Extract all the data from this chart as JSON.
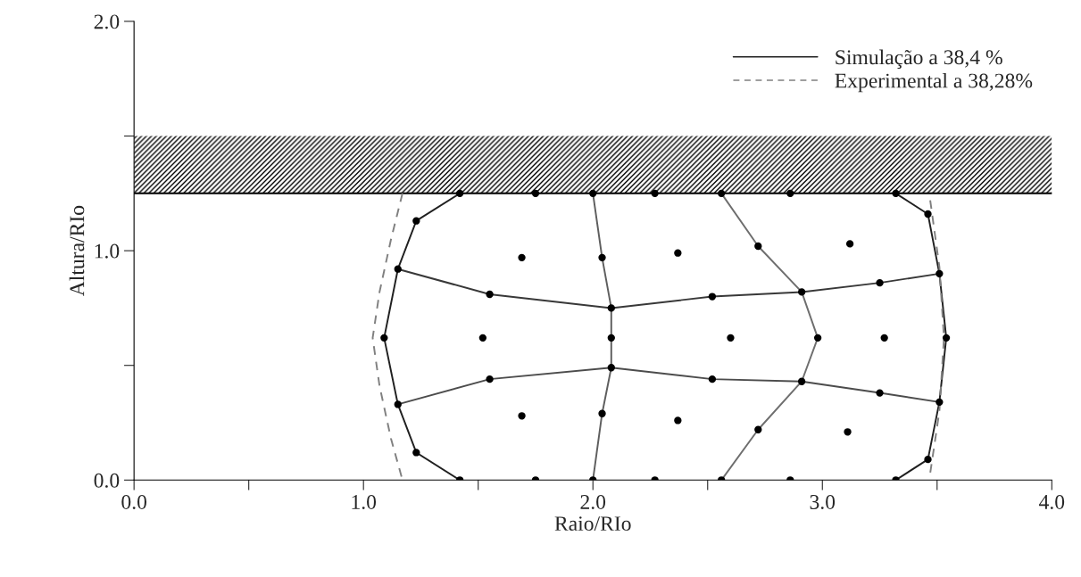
{
  "chart_data": {
    "type": "line",
    "xlabel": "Raio/RIo",
    "ylabel": "Altura/RIo",
    "xlim": [
      0,
      4.0
    ],
    "ylim": [
      0,
      2.0
    ],
    "xticks": [
      {
        "value": 0,
        "label": "0.0"
      },
      {
        "value": 0.5,
        "label": null
      },
      {
        "value": 1,
        "label": "1.0"
      },
      {
        "value": 1.5,
        "label": null
      },
      {
        "value": 2,
        "label": "2.0"
      },
      {
        "value": 2.5,
        "label": null
      },
      {
        "value": 3,
        "label": "3.0"
      },
      {
        "value": 3.5,
        "label": null
      },
      {
        "value": 4,
        "label": "4.0"
      }
    ],
    "yticks": [
      {
        "value": 0,
        "label": "0.0"
      },
      {
        "value": 0.5,
        "label": null
      },
      {
        "value": 1,
        "label": "1.0"
      },
      {
        "value": 1.5,
        "label": null
      },
      {
        "value": 2,
        "label": "2.0"
      }
    ],
    "grid": false,
    "legend": "top right",
    "bands": [
      {
        "axis": "y",
        "from": 1.25,
        "to": 1.5,
        "color": "#000000"
      }
    ],
    "ref_lines": [
      {
        "axis": "y",
        "value": 1.25,
        "color": "#000000",
        "line_style": "solid"
      }
    ],
    "series": [
      {
        "name": "Simulação a 38,4 %",
        "color": "#202020",
        "line_style": "solid",
        "marker": "none",
        "x": [
          1.42,
          1.23,
          1.15,
          1.09,
          1.15,
          1.23,
          1.42
        ],
        "values": [
          0,
          0.12,
          0.33,
          0.62,
          0.92,
          1.13,
          1.25
        ]
      },
      {
        "color": "#202020",
        "line_style": "solid",
        "marker": "none",
        "x": [
          3.32,
          3.46,
          3.51,
          3.54,
          3.51,
          3.46,
          3.32
        ],
        "values": [
          1.25,
          1.16,
          0.9,
          0.62,
          0.34,
          0.09,
          0
        ]
      },
      {
        "name": "Experimental a 38,28%",
        "color": "#808080",
        "line_style": "dashed",
        "marker": "none",
        "x": [
          1.17,
          1.12,
          1.07,
          1.04,
          1.07,
          1.12,
          1.17
        ],
        "values": [
          1.25,
          1.05,
          0.82,
          0.62,
          0.41,
          0.18,
          0
        ]
      },
      {
        "color": "#808080",
        "line_style": "dashed",
        "marker": "none",
        "x": [
          3.47,
          3.51,
          3.53,
          3.51,
          3.47
        ],
        "values": [
          1.22,
          0.93,
          0.62,
          0.3,
          0.03
        ]
      },
      {
        "color": "#383838",
        "line_style": "solid",
        "marker": "none",
        "x": [
          1.15,
          1.55,
          2.08,
          2.52,
          2.91,
          3.25,
          3.51
        ],
        "values": [
          0.92,
          0.81,
          0.75,
          0.8,
          0.82,
          0.86,
          0.9
        ]
      },
      {
        "color": "#4c4c4c",
        "line_style": "solid",
        "marker": "none",
        "x": [
          1.15,
          1.55,
          2.08,
          2.52,
          2.91,
          3.25,
          3.51
        ],
        "values": [
          0.33,
          0.44,
          0.49,
          0.44,
          0.43,
          0.38,
          0.34
        ]
      },
      {
        "color": "#5e5e5e",
        "line_style": "solid",
        "marker": "none",
        "x": [
          2.0,
          2.04,
          2.08,
          2.08,
          2.08,
          2.04,
          2.0
        ],
        "values": [
          1.25,
          0.97,
          0.75,
          0.62,
          0.49,
          0.29,
          0
        ]
      },
      {
        "color": "#6e6e6e",
        "line_style": "solid",
        "marker": "none",
        "x": [
          2.56,
          2.72,
          2.91,
          2.98,
          2.91,
          2.72,
          2.56
        ],
        "values": [
          1.25,
          1.02,
          0.82,
          0.62,
          0.43,
          0.22,
          0
        ]
      },
      {
        "type": "scatter",
        "color": "#000000",
        "marker": "circle",
        "x": [
          1.42,
          1.75,
          2.0,
          2.27,
          2.56,
          2.86,
          3.32,
          3.46,
          3.51,
          3.54,
          3.51,
          3.46,
          3.32,
          2.86,
          2.56,
          2.27,
          2.0,
          1.75,
          1.42,
          1.23,
          1.15,
          1.09,
          1.15,
          1.23,
          1.55,
          2.08,
          2.52,
          2.91,
          3.25,
          1.55,
          2.08,
          2.52,
          2.91,
          3.25,
          2.04,
          2.08,
          2.04,
          2.72,
          2.98,
          2.72,
          1.69,
          1.52,
          1.69,
          2.37,
          2.6,
          2.37,
          3.12,
          3.27,
          3.11
        ],
        "values": [
          1.25,
          1.25,
          1.25,
          1.25,
          1.25,
          1.25,
          1.25,
          1.16,
          0.9,
          0.62,
          0.34,
          0.09,
          0,
          0,
          0,
          0,
          0,
          0,
          0,
          0.12,
          0.33,
          0.62,
          0.92,
          1.13,
          0.81,
          0.75,
          0.8,
          0.82,
          0.86,
          0.44,
          0.49,
          0.44,
          0.43,
          0.38,
          0.97,
          0.62,
          0.29,
          1.02,
          0.62,
          0.22,
          0.97,
          0.62,
          0.28,
          0.99,
          0.62,
          0.26,
          1.03,
          0.62,
          0.21
        ]
      }
    ]
  }
}
